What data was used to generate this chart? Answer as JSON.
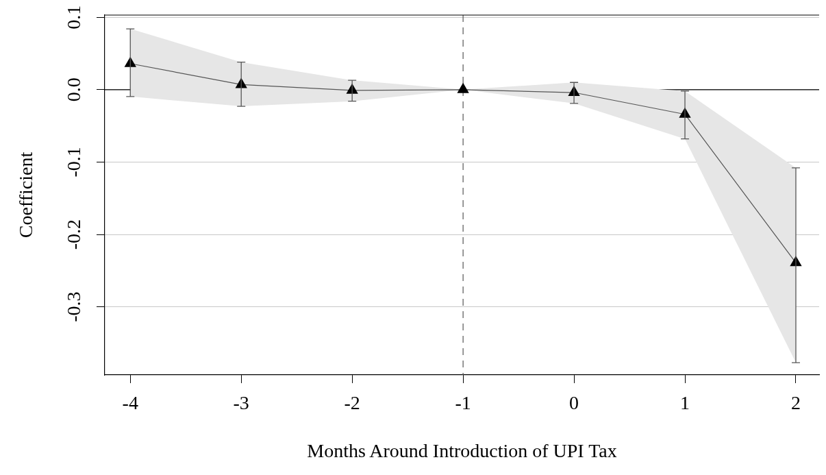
{
  "chart_data": {
    "type": "line",
    "xlabel": "Months Around Introduction of UPI Tax",
    "ylabel": "Coefficient",
    "x": [
      -4,
      -3,
      -2,
      -1,
      0,
      1,
      2
    ],
    "series": [
      {
        "color": "#555555",
        "values": [
          0.036,
          0.007,
          -0.001,
          0,
          -0.004,
          -0.034,
          -0.239
        ],
        "lower": [
          -0.0095,
          -0.023,
          -0.016,
          0,
          -0.019,
          -0.068,
          -0.377
        ],
        "upper": [
          0.084,
          0.038,
          0.013,
          0,
          0.01,
          -0.002,
          -0.108
        ],
        "errors": [
          [
            -0.0095,
            0.084
          ],
          [
            -0.023,
            0.038
          ],
          [
            -0.016,
            0.013
          ],
          null,
          [
            -0.019,
            0.01
          ],
          [
            -0.068,
            -0.002
          ],
          [
            -0.377,
            -0.108
          ]
        ]
      }
    ],
    "xlim": [
      -4.23,
      2.21
    ],
    "xticks": [
      -4,
      -3,
      -2,
      -1,
      0,
      1,
      2
    ],
    "ylim": [
      -0.394,
      0.103
    ],
    "yticks": [
      {
        "value": 0.1,
        "label": "0.1"
      },
      {
        "value": 0,
        "label": "0.0"
      },
      {
        "value": -0.1,
        "label": "-0.1"
      },
      {
        "value": -0.2,
        "label": "-0.2"
      },
      {
        "value": -0.3,
        "label": "-0.3"
      }
    ],
    "ref_lines": [
      {
        "axis": "y",
        "value": 0,
        "color": "#000000",
        "line_style": "solid"
      },
      {
        "axis": "x",
        "value": -1,
        "color": "#555555",
        "line_style": "dashed"
      }
    ],
    "grid": "y",
    "legend": false,
    "marker": "triangle",
    "line_style": "solid"
  }
}
